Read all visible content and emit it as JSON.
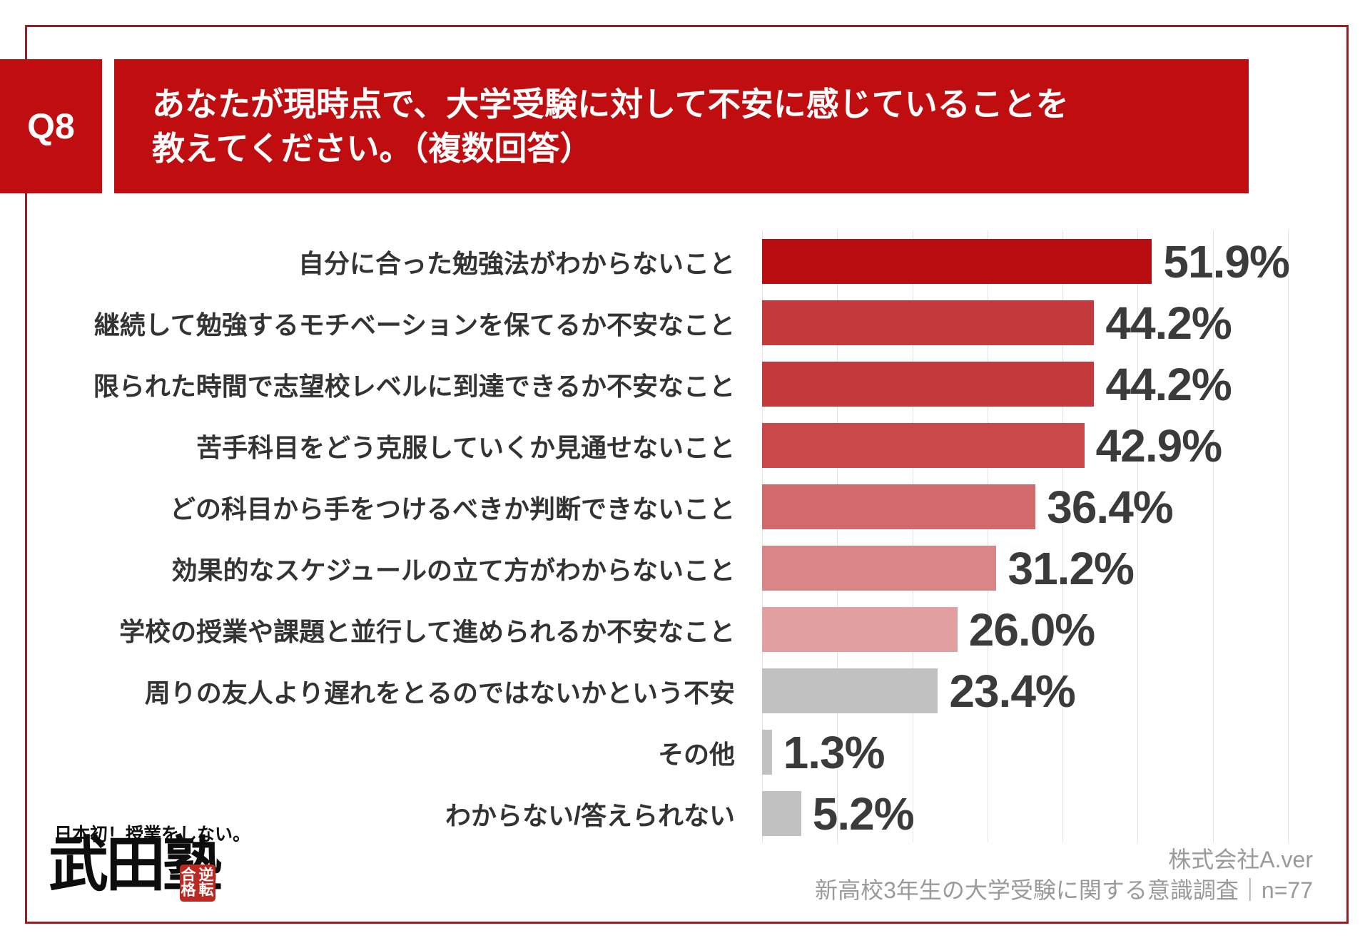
{
  "header": {
    "question_no": "Q8",
    "title_line1": "あなたが現時点で、大学受験に対して不安に感じていることを",
    "title_line2": "教えてください。（複数回答）"
  },
  "chart_data": {
    "type": "bar",
    "orientation": "horizontal",
    "categories": [
      "自分に合った勉強法がわからないこと",
      "継続して勉強するモチベーションを保てるか不安なこと",
      "限られた時間で志望校レベルに到達できるか不安なこと",
      "苦手科目をどう克服していくか見通せないこと",
      "どの科目から手をつけるべきか判断できないこと",
      "効果的なスケジュールの立て方がわからないこと",
      "学校の授業や課題と並行して進められるか不安なこと",
      "周りの友人より遅れをとるのではないかという不安",
      "その他",
      "わからない/答えられない"
    ],
    "values": [
      51.9,
      44.2,
      44.2,
      42.9,
      36.4,
      31.2,
      26.0,
      23.4,
      1.3,
      5.2
    ],
    "value_labels": [
      "51.9%",
      "44.2%",
      "44.2%",
      "42.9%",
      "36.4%",
      "31.2%",
      "26.0%",
      "23.4%",
      "1.3%",
      "5.2%"
    ],
    "bar_colors": [
      "#b80e11",
      "#c43a3c",
      "#c43a3c",
      "#c9494b",
      "#d26a6b",
      "#da8586",
      "#e19fa0",
      "#c1c1c1",
      "#c1c1c1",
      "#c1c1c1"
    ],
    "xlim": [
      0,
      70
    ],
    "grid": true,
    "gridline_interval": 10,
    "title": "",
    "xlabel": "",
    "ylabel": ""
  },
  "footer": {
    "company": "株式会社A.ver",
    "survey": "新高校3年生の大学受験に関する意識調査｜n=77"
  },
  "logo": {
    "tagline": "日本初！授業をしない。",
    "brand": "武田塾",
    "seal": "逆転合格"
  },
  "colors": {
    "accent_red": "#c00d10",
    "frame_red": "#9e1b22",
    "grid_gray": "#e3e3e3",
    "value_text": "#3b3b3b",
    "label_text": "#333333",
    "footer_gray": "#9a9a9a",
    "neutral_bar": "#c1c1c1"
  }
}
